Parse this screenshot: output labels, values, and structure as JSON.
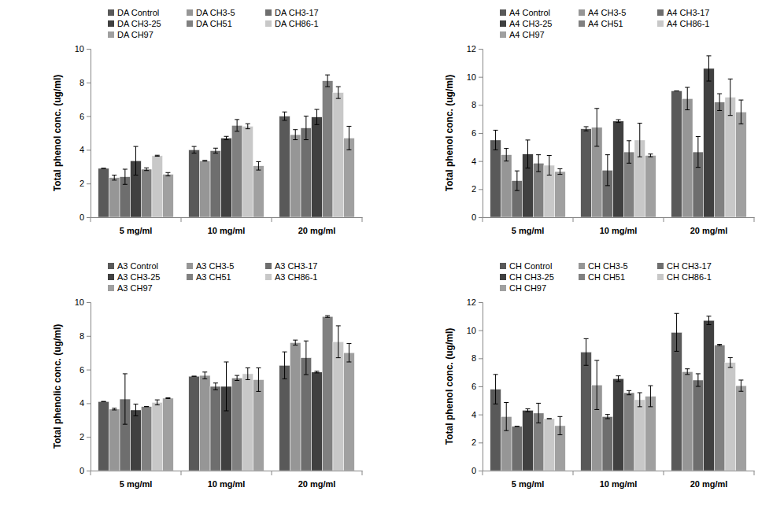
{
  "chart_data": [
    {
      "type": "bar",
      "y_label": "Total phenol conc. (ug/ml)",
      "categories": [
        "5 mg/ml",
        "10 mg/ml",
        "20 mg/ml"
      ],
      "ylim": [
        0,
        10
      ],
      "yticks": [
        0,
        2,
        4,
        6,
        8,
        10
      ],
      "series": [
        {
          "name": "DA Control",
          "color": "#595959",
          "values": [
            2.9,
            4.0,
            6.0
          ],
          "errors": [
            0.0,
            0.2,
            0.25
          ]
        },
        {
          "name": "DA CH3-5",
          "color": "#969696",
          "values": [
            2.35,
            3.35,
            4.9
          ],
          "errors": [
            0.15,
            0.02,
            0.3
          ]
        },
        {
          "name": "DA CH3-17",
          "color": "#6e6e6e",
          "values": [
            2.4,
            3.95,
            5.3
          ],
          "errors": [
            0.45,
            0.15,
            0.7
          ]
        },
        {
          "name": "DA CH3-25",
          "color": "#404040",
          "values": [
            3.35,
            4.7,
            5.95
          ],
          "errors": [
            0.85,
            0.1,
            0.45
          ]
        },
        {
          "name": "DA CH51",
          "color": "#808080",
          "values": [
            2.85,
            5.45,
            8.1
          ],
          "errors": [
            0.08,
            0.35,
            0.35
          ]
        },
        {
          "name": "DA CH86-1",
          "color": "#c8c8c8",
          "values": [
            3.65,
            5.4,
            7.4
          ],
          "errors": [
            0.03,
            0.15,
            0.35
          ]
        },
        {
          "name": "DA CH97",
          "color": "#a0a0a0",
          "values": [
            2.55,
            3.05,
            4.7
          ],
          "errors": [
            0.1,
            0.25,
            0.7
          ]
        }
      ]
    },
    {
      "type": "bar",
      "y_label": "Total phenol conc. (ug/ml)",
      "categories": [
        "5 mg/ml",
        "10 mg/ml",
        "20 mg/ml"
      ],
      "ylim": [
        0,
        12
      ],
      "yticks": [
        0,
        2,
        4,
        6,
        8,
        10,
        12
      ],
      "series": [
        {
          "name": "A4 Control",
          "color": "#595959",
          "values": [
            5.5,
            6.3,
            9.0
          ],
          "errors": [
            0.7,
            0.15,
            0.0
          ]
        },
        {
          "name": "A4 CH3-5",
          "color": "#969696",
          "values": [
            4.45,
            6.4,
            8.45
          ],
          "errors": [
            0.45,
            1.35,
            0.8
          ]
        },
        {
          "name": "A4 CH3-17",
          "color": "#6e6e6e",
          "values": [
            2.6,
            3.35,
            4.65
          ],
          "errors": [
            0.7,
            1.1,
            1.1
          ]
        },
        {
          "name": "A4 CH3-25",
          "color": "#404040",
          "values": [
            4.5,
            6.85,
            10.6
          ],
          "errors": [
            1.0,
            0.1,
            0.9
          ]
        },
        {
          "name": "A4 CH51",
          "color": "#808080",
          "values": [
            3.85,
            4.65,
            8.2
          ],
          "errors": [
            0.6,
            0.8,
            0.6
          ]
        },
        {
          "name": "A4 CH86-1",
          "color": "#c8c8c8",
          "values": [
            3.7,
            5.5,
            8.55
          ],
          "errors": [
            0.7,
            1.2,
            1.3
          ]
        },
        {
          "name": "A4 CH97",
          "color": "#a0a0a0",
          "values": [
            3.25,
            4.4,
            7.5
          ],
          "errors": [
            0.2,
            0.1,
            0.85
          ]
        }
      ]
    },
    {
      "type": "bar",
      "y_label": "Total phenolic conc. (ug/ml)",
      "categories": [
        "5 mg/ml",
        "10 mg/ml",
        "20 mg/ml"
      ],
      "ylim": [
        0,
        10
      ],
      "yticks": [
        0,
        2,
        4,
        6,
        8,
        10
      ],
      "series": [
        {
          "name": "A3 Control",
          "color": "#595959",
          "values": [
            4.1,
            5.6,
            6.25
          ],
          "errors": [
            0.0,
            0.0,
            0.8
          ]
        },
        {
          "name": "A3 CH3-5",
          "color": "#969696",
          "values": [
            3.65,
            5.65,
            7.6
          ],
          "errors": [
            0.05,
            0.2,
            0.15
          ]
        },
        {
          "name": "A3 CH3-17",
          "color": "#6e6e6e",
          "values": [
            4.25,
            5.0,
            6.7
          ],
          "errors": [
            1.5,
            0.2,
            1.0
          ]
        },
        {
          "name": "A3 CH3-25",
          "color": "#404040",
          "values": [
            3.6,
            5.0,
            5.85
          ],
          "errors": [
            0.35,
            1.45,
            0.05
          ]
        },
        {
          "name": "A3 CH51",
          "color": "#808080",
          "values": [
            3.8,
            5.5,
            9.15
          ],
          "errors": [
            0.0,
            0.15,
            0.05
          ]
        },
        {
          "name": "A3 CH86-1",
          "color": "#c8c8c8",
          "values": [
            4.05,
            5.75,
            7.65
          ],
          "errors": [
            0.15,
            0.35,
            0.95
          ]
        },
        {
          "name": "A3 CH97",
          "color": "#a0a0a0",
          "values": [
            4.3,
            5.4,
            7.0
          ],
          "errors": [
            0.02,
            0.7,
            0.55
          ]
        }
      ]
    },
    {
      "type": "bar",
      "y_label": "Total phenol conc. (ug/ml)",
      "categories": [
        "5 mg/ml",
        "10 mg/ml",
        "20 mg/ml"
      ],
      "ylim": [
        0,
        12
      ],
      "yticks": [
        0,
        2,
        4,
        6,
        8,
        10,
        12
      ],
      "series": [
        {
          "name": "CH Control",
          "color": "#595959",
          "values": [
            5.8,
            8.45,
            9.85
          ],
          "errors": [
            1.05,
            0.95,
            1.35
          ]
        },
        {
          "name": "CH CH3-5",
          "color": "#969696",
          "values": [
            3.85,
            6.1,
            7.05
          ],
          "errors": [
            1.0,
            1.75,
            0.2
          ]
        },
        {
          "name": "CH CH3-17",
          "color": "#6e6e6e",
          "values": [
            3.15,
            3.85,
            6.45
          ],
          "errors": [
            0.0,
            0.15,
            0.45
          ]
        },
        {
          "name": "CH CH3-25",
          "color": "#404040",
          "values": [
            4.3,
            6.55,
            10.7
          ],
          "errors": [
            0.1,
            0.2,
            0.3
          ]
        },
        {
          "name": "CH CH51",
          "color": "#808080",
          "values": [
            4.1,
            5.55,
            8.95
          ],
          "errors": [
            0.7,
            0.15,
            0.05
          ]
        },
        {
          "name": "CH CH86-1",
          "color": "#c8c8c8",
          "values": [
            3.7,
            5.05,
            7.7
          ],
          "errors": [
            0.0,
            0.5,
            0.35
          ]
        },
        {
          "name": "CH CH97",
          "color": "#a0a0a0",
          "values": [
            3.2,
            5.3,
            6.05
          ],
          "errors": [
            0.65,
            0.75,
            0.4
          ]
        }
      ]
    }
  ]
}
